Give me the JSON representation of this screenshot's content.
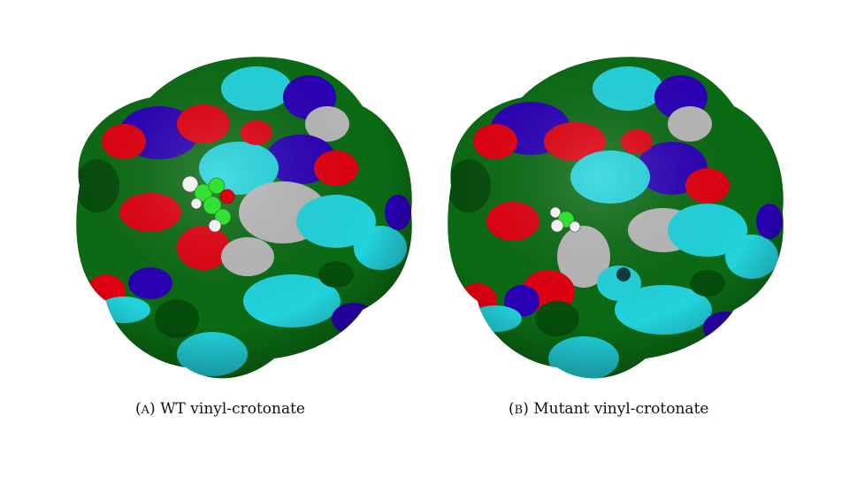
{
  "figures": [
    {
      "label_open": "(",
      "label_letter": "A",
      "label_close": ")",
      "caption": "WT vinyl-crotonate"
    },
    {
      "label_open": "(",
      "label_letter": "B",
      "label_close": ")",
      "caption": "Mutant vinyl-crotonate"
    }
  ],
  "colors": {
    "green": "#0b6b14",
    "dark_green": "#064d0c",
    "red": "#e00010",
    "blue": "#2a00b5",
    "cyan": "#22d3dc",
    "gray": "#b8b8b8",
    "ligand_green": "#35e035",
    "ligand_white": "#f2f2f2"
  }
}
